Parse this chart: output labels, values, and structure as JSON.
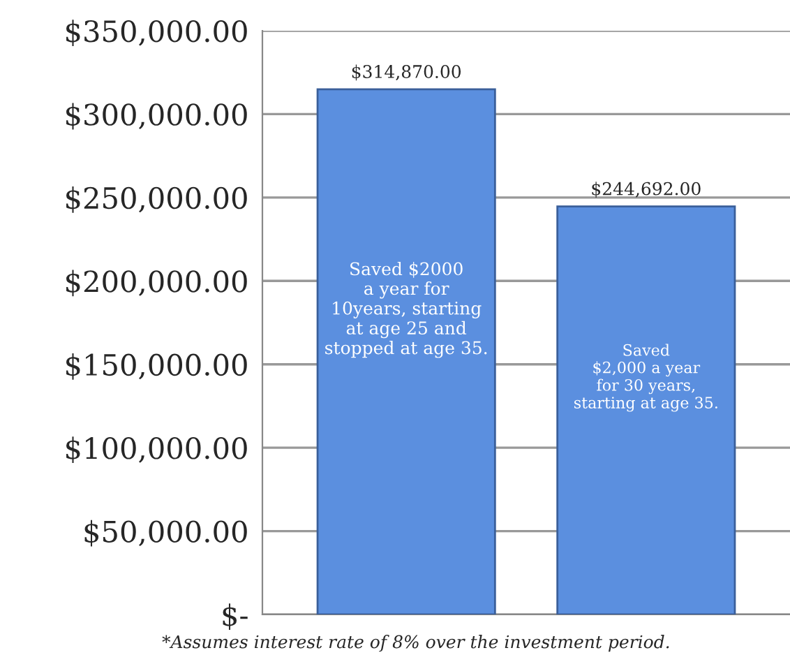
{
  "chart_data": {
    "type": "bar",
    "categories": [
      null,
      null
    ],
    "values": [
      314870,
      244692
    ],
    "color": "#5b8fdf",
    "value_labels": [
      "$314,870.00",
      "$244,692.00"
    ],
    "ylim": [
      0,
      350000
    ],
    "yticks": [
      {
        "value": 0,
        "label": "$-"
      },
      {
        "value": 50000,
        "label": "$50,000.00"
      },
      {
        "value": 100000,
        "label": "$100,000.00"
      },
      {
        "value": 150000,
        "label": "$150,000.00"
      },
      {
        "value": 200000,
        "label": "$200,000.00"
      },
      {
        "value": 250000,
        "label": "$250,000.00"
      },
      {
        "value": 300000,
        "label": "$300,000.00"
      },
      {
        "value": 350000,
        "label": "$350,000.00"
      }
    ],
    "grid": "y",
    "annotations": [
      "Saved $2000\na year for\n10years, starting\nat age 25 and\nstopped at age 35.",
      "Saved\n$2,000 a year\nfor 30 years,\nstarting at age 35.",
      "*Assumes interest rate of 8% over the investment period."
    ]
  }
}
